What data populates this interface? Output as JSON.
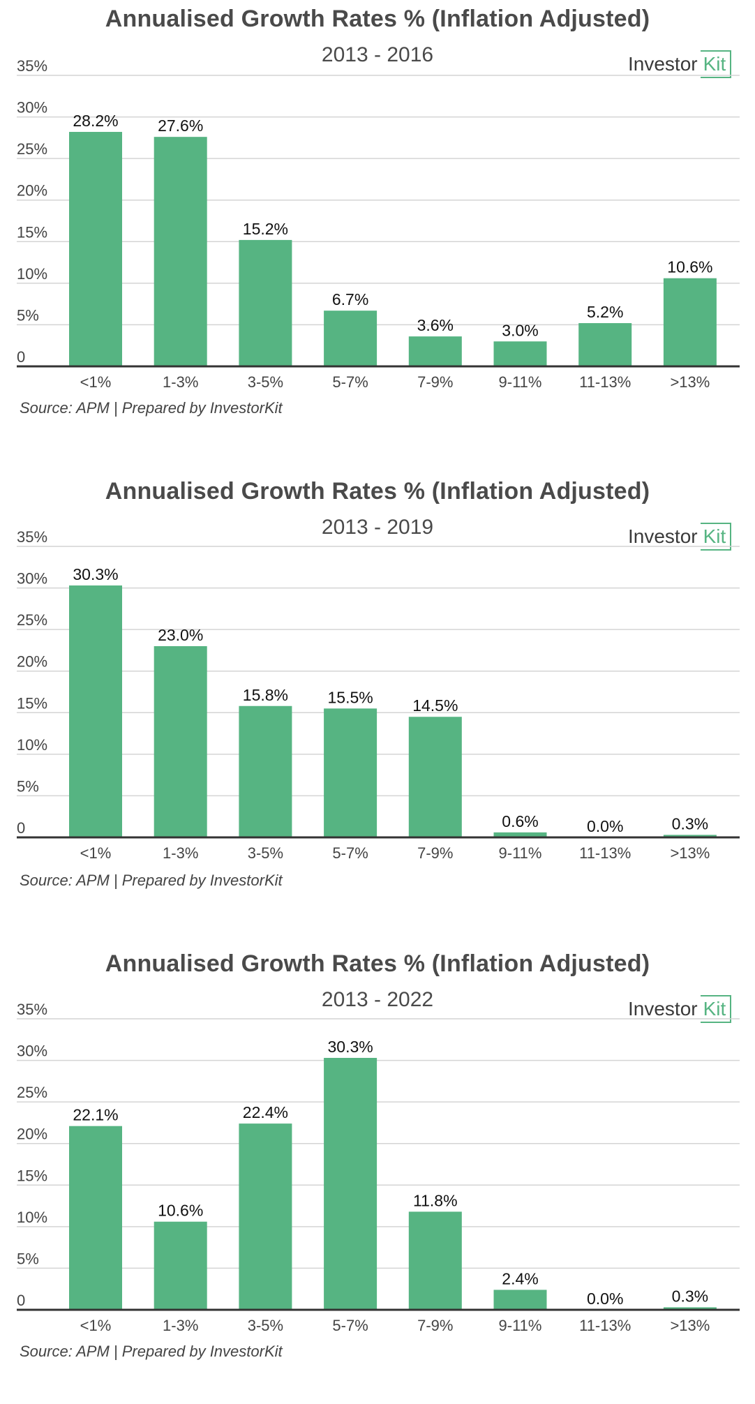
{
  "logo": {
    "text_main": "Investor",
    "text_accent": "Kit"
  },
  "colors": {
    "bar": "#56b482",
    "grid": "#d4d4d4",
    "axis": "#333333"
  },
  "source_note": "Source: APM | Prepared by InvestorKit",
  "chart_data": [
    {
      "type": "bar",
      "title": "Annualised Growth Rates % (Inflation Adjusted)",
      "subtitle": "2013 - 2016",
      "categories": [
        "<1%",
        "1-3%",
        "3-5%",
        "5-7%",
        "7-9%",
        "9-11%",
        "11-13%",
        ">13%"
      ],
      "values": [
        28.2,
        27.6,
        15.2,
        6.7,
        3.6,
        3.0,
        5.2,
        10.6
      ],
      "value_labels": [
        "28.2%",
        "27.6%",
        "15.2%",
        "6.7%",
        "3.6%",
        "3.0%",
        "5.2%",
        "10.6%"
      ],
      "ylim": [
        0,
        35
      ],
      "yticks": [
        "0",
        "5%",
        "10%",
        "15%",
        "20%",
        "25%",
        "30%",
        "35%"
      ],
      "grid": true
    },
    {
      "type": "bar",
      "title": "Annualised Growth Rates % (Inflation Adjusted)",
      "subtitle": "2013 - 2019",
      "categories": [
        "<1%",
        "1-3%",
        "3-5%",
        "5-7%",
        "7-9%",
        "9-11%",
        "11-13%",
        ">13%"
      ],
      "values": [
        30.3,
        23.0,
        15.8,
        15.5,
        14.5,
        0.6,
        0.0,
        0.3
      ],
      "value_labels": [
        "30.3%",
        "23.0%",
        "15.8%",
        "15.5%",
        "14.5%",
        "0.6%",
        "0.0%",
        "0.3%"
      ],
      "ylim": [
        0,
        35
      ],
      "yticks": [
        "0",
        "5%",
        "10%",
        "15%",
        "20%",
        "25%",
        "30%",
        "35%"
      ],
      "grid": true
    },
    {
      "type": "bar",
      "title": "Annualised Growth Rates % (Inflation Adjusted)",
      "subtitle": "2013 - 2022",
      "categories": [
        "<1%",
        "1-3%",
        "3-5%",
        "5-7%",
        "7-9%",
        "9-11%",
        "11-13%",
        ">13%"
      ],
      "values": [
        22.1,
        10.6,
        22.4,
        30.3,
        11.8,
        2.4,
        0.0,
        0.3
      ],
      "value_labels": [
        "22.1%",
        "10.6%",
        "22.4%",
        "30.3%",
        "11.8%",
        "2.4%",
        "0.0%",
        "0.3%"
      ],
      "ylim": [
        0,
        35
      ],
      "yticks": [
        "0",
        "5%",
        "10%",
        "15%",
        "20%",
        "25%",
        "30%",
        "35%"
      ],
      "grid": true
    }
  ]
}
